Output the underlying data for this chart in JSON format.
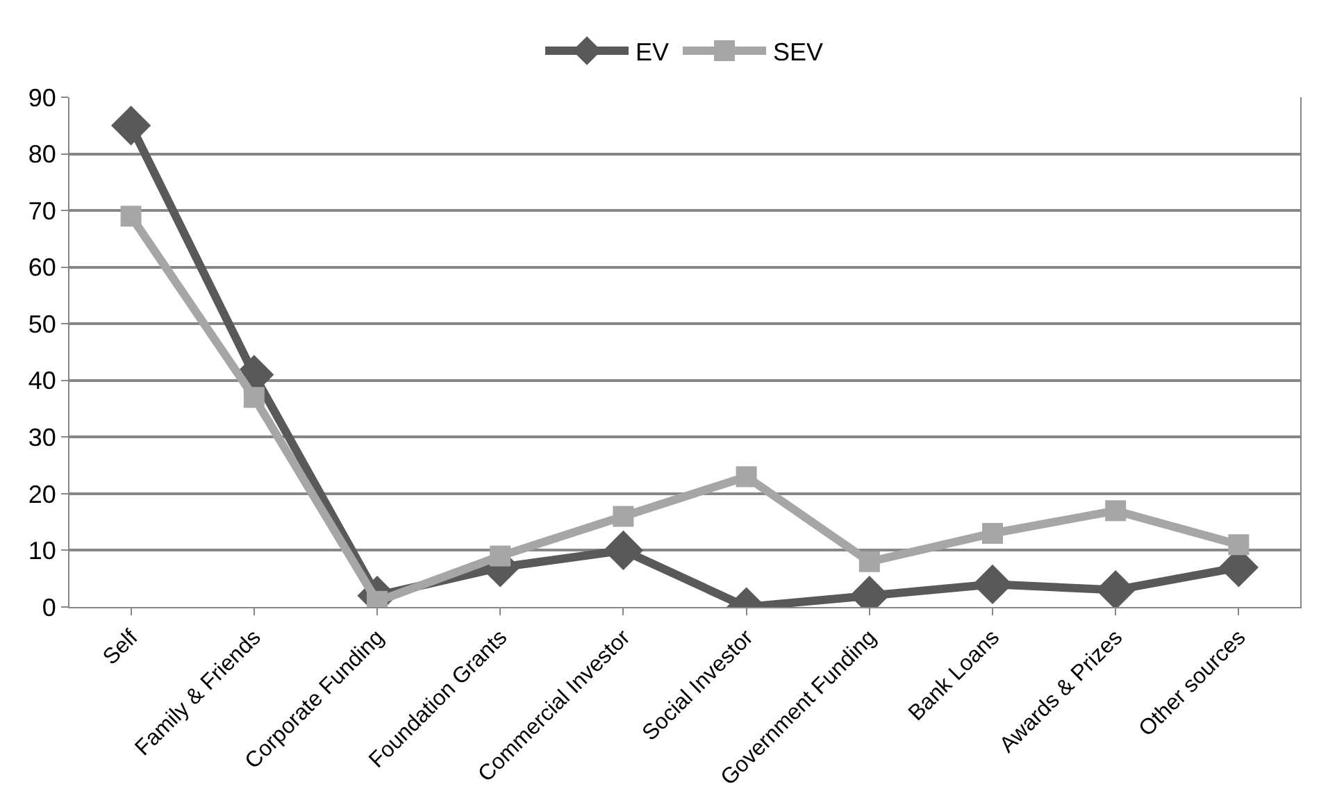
{
  "chart_data": {
    "type": "line",
    "categories": [
      "Self",
      "Family & Friends",
      "Corporate Funding",
      "Foundation Grants",
      "Commercial Investor",
      "Social Investor",
      "Government Funding",
      "Bank Loans",
      "Awards & Prizes",
      "Other sources"
    ],
    "series": [
      {
        "name": "EV",
        "color": "#595959",
        "marker": "diamond",
        "values": [
          85,
          41,
          2,
          7,
          10,
          0,
          2,
          4,
          3,
          7
        ]
      },
      {
        "name": "SEV",
        "color": "#a6a6a6",
        "marker": "square",
        "values": [
          69,
          37,
          1,
          9,
          16,
          23,
          8,
          13,
          17,
          11
        ]
      }
    ],
    "ylim": [
      0,
      90
    ],
    "yticks": [
      0,
      10,
      20,
      30,
      40,
      50,
      60,
      70,
      80,
      90
    ],
    "grid": "y",
    "legend": "top",
    "line_style": "solid"
  }
}
